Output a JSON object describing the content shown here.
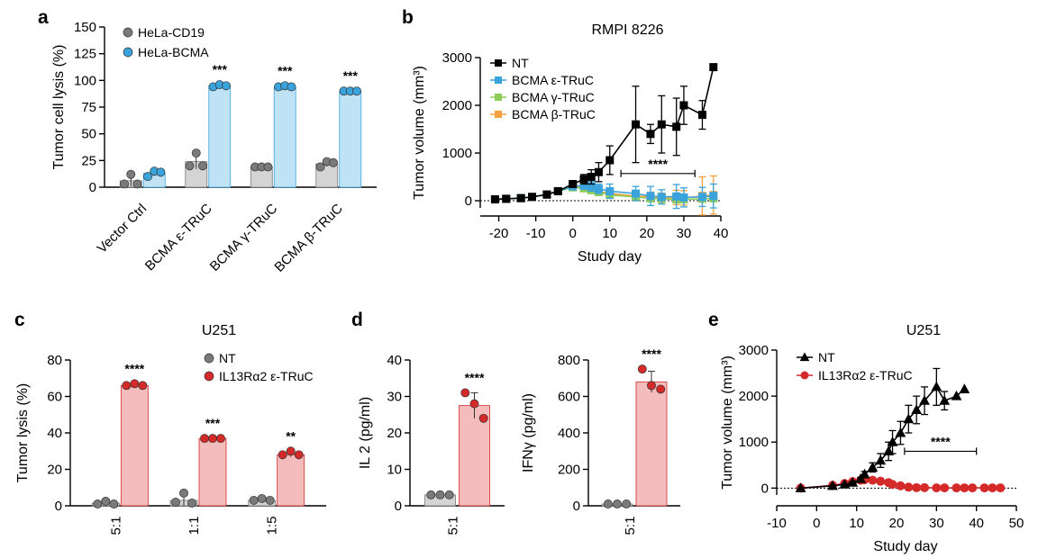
{
  "chart_data": [
    {
      "panel": "a",
      "type": "bar",
      "title": "",
      "ylabel": "Tumor cell lysis (%)",
      "xlabel": "",
      "ylim": [
        0,
        150
      ],
      "yticks": [
        0,
        25,
        50,
        75,
        100,
        125,
        150
      ],
      "categories": [
        "Vector Ctrl",
        "BCMA ε-TRuC",
        "BCMA γ-TRuC",
        "BCMA β-TRuC"
      ],
      "legend_position": "top-left",
      "series": [
        {
          "name": "HeLa-CD19",
          "color": "#d4d4d4",
          "dot_color": "#7a7a7a",
          "values": [
            6,
            24,
            19,
            22
          ],
          "points": [
            [
              3,
              12,
              3
            ],
            [
              20,
              32,
              20
            ],
            [
              19,
              19,
              19
            ],
            [
              19,
              24,
              23
            ]
          ]
        },
        {
          "name": "HeLa-BCMA",
          "color": "#bfe3f5",
          "dot_color": "#3ba3dc",
          "values": [
            13,
            95,
            94,
            90
          ],
          "points": [
            [
              10,
              15,
              14
            ],
            [
              94,
              96,
              95
            ],
            [
              94,
              95,
              94
            ],
            [
              90,
              90,
              90
            ]
          ]
        }
      ],
      "annotations": [
        "***",
        "***",
        "***"
      ]
    },
    {
      "panel": "b",
      "type": "line",
      "title": "RMPI 8226",
      "xlabel": "Study day",
      "ylabel": "Tumor volume (mm³)",
      "xlim": [
        -25,
        40
      ],
      "ylim": [
        -150,
        3000
      ],
      "xticks": [
        -20,
        -10,
        0,
        10,
        20,
        30,
        40
      ],
      "yticks": [
        0,
        1000,
        2000,
        3000
      ],
      "legend_position": "top-left",
      "series": [
        {
          "name": "NT",
          "color": "#000000",
          "marker": "square",
          "x": [
            -21,
            -18,
            -14,
            -11,
            -7,
            -4,
            0,
            3,
            5,
            7,
            10,
            17,
            21,
            24,
            28,
            30,
            35,
            38
          ],
          "y": [
            30,
            40,
            55,
            80,
            130,
            200,
            350,
            450,
            500,
            600,
            850,
            1600,
            1400,
            1600,
            1550,
            2000,
            1800,
            2800
          ],
          "err": [
            0,
            0,
            0,
            0,
            20,
            30,
            60,
            100,
            150,
            200,
            300,
            800,
            200,
            600,
            600,
            400,
            300,
            0
          ]
        },
        {
          "name": "BCMA ε-TRuC",
          "color": "#3ba3dc",
          "marker": "square",
          "x": [
            -21,
            -18,
            -14,
            -11,
            -7,
            -4,
            0,
            3,
            5,
            7,
            10,
            17,
            21,
            24,
            28,
            30,
            35,
            38
          ],
          "y": [
            30,
            40,
            55,
            80,
            130,
            200,
            300,
            320,
            300,
            250,
            200,
            150,
            100,
            80,
            90,
            70,
            80,
            100
          ],
          "err": [
            0,
            0,
            0,
            0,
            20,
            30,
            60,
            80,
            100,
            100,
            150,
            150,
            200,
            150,
            250,
            200,
            200,
            250
          ]
        },
        {
          "name": "BCMA γ-TRuC",
          "color": "#8ccd5a",
          "marker": "square",
          "x": [
            -21,
            -18,
            -14,
            -11,
            -7,
            -4,
            0,
            3,
            5,
            7,
            10,
            17,
            21,
            24,
            28,
            30,
            35,
            38
          ],
          "y": [
            30,
            40,
            55,
            80,
            130,
            200,
            280,
            260,
            220,
            180,
            120,
            80,
            50,
            40,
            30,
            30,
            40,
            50
          ],
          "err": [
            0,
            0,
            0,
            0,
            20,
            30,
            50,
            60,
            60,
            60,
            60,
            60,
            50,
            40,
            40,
            40,
            40,
            50
          ]
        },
        {
          "name": "BCMA β-TRuC",
          "color": "#f5a040",
          "marker": "square",
          "x": [
            -21,
            -18,
            -14,
            -11,
            -7,
            -4,
            0,
            3,
            5,
            7,
            10,
            17,
            21,
            24,
            28,
            30,
            35,
            38
          ],
          "y": [
            30,
            40,
            55,
            80,
            130,
            200,
            300,
            280,
            250,
            200,
            150,
            100,
            80,
            60,
            70,
            60,
            100,
            120
          ],
          "err": [
            0,
            0,
            0,
            0,
            20,
            30,
            60,
            80,
            80,
            80,
            100,
            100,
            100,
            100,
            150,
            150,
            400,
            400
          ]
        }
      ],
      "annotations": [
        "****"
      ]
    },
    {
      "panel": "c",
      "type": "bar",
      "title": "U251",
      "ylabel": "Tumor lysis (%)",
      "xlabel": "",
      "ylim": [
        0,
        80
      ],
      "yticks": [
        0,
        20,
        40,
        60,
        80
      ],
      "categories": [
        "5:1",
        "1:1",
        "1:5"
      ],
      "legend_position": "top-right",
      "series": [
        {
          "name": "NT",
          "color": "#d4d4d4",
          "dot_color": "#7a7a7a",
          "values": [
            1.5,
            3,
            3
          ],
          "points": [
            [
              1,
              2.5,
              1
            ],
            [
              2,
              7,
              1.5
            ],
            [
              3,
              4,
              3
            ]
          ]
        },
        {
          "name": "IL13Rα2 ε-TRuC",
          "color": "#f4bcbc",
          "dot_color": "#d42a2a",
          "values": [
            66,
            37,
            28
          ],
          "points": [
            [
              66,
              67,
              66
            ],
            [
              37,
              37,
              37
            ],
            [
              28,
              30,
              28
            ]
          ]
        }
      ],
      "annotations": [
        "****",
        "***",
        "**"
      ]
    },
    {
      "panel": "d",
      "type": "bar",
      "title": "",
      "ylabel": "IL 2 (pg/ml)",
      "ylim": [
        0,
        40
      ],
      "yticks": [
        0,
        10,
        20,
        30,
        40
      ],
      "categories": [
        "5:1"
      ],
      "series": [
        {
          "name": "NT",
          "color": "#d4d4d4",
          "dot_color": "#7a7a7a",
          "values": [
            3
          ],
          "points": [
            [
              3,
              3,
              3
            ]
          ]
        },
        {
          "name": "IL13Rα2 ε-TRuC",
          "color": "#f4bcbc",
          "dot_color": "#d42a2a",
          "values": [
            27.5
          ],
          "points": [
            [
              31,
              28,
              24
            ]
          ]
        }
      ],
      "annotations": [
        "****"
      ]
    },
    {
      "panel": "d",
      "type": "bar",
      "title": "",
      "ylabel": "IFNγ (pg/ml)",
      "ylim": [
        0,
        800
      ],
      "yticks": [
        0,
        200,
        400,
        600,
        800
      ],
      "categories": [
        "5:1"
      ],
      "series": [
        {
          "name": "NT",
          "color": "#d4d4d4",
          "dot_color": "#7a7a7a",
          "values": [
            10
          ],
          "points": [
            [
              10,
              10,
              10
            ]
          ]
        },
        {
          "name": "IL13Rα2 ε-TRuC",
          "color": "#f4bcbc",
          "dot_color": "#d42a2a",
          "values": [
            680
          ],
          "points": [
            [
              750,
              660,
              640
            ]
          ]
        }
      ],
      "annotations": [
        "****"
      ]
    },
    {
      "panel": "e",
      "type": "line",
      "title": "U251",
      "xlabel": "Study day",
      "ylabel": "Tumor volume (mm³)",
      "xlim": [
        -10,
        50
      ],
      "ylim": [
        -150,
        3000
      ],
      "xticks": [
        -10,
        0,
        10,
        20,
        30,
        40,
        50
      ],
      "yticks": [
        0,
        1000,
        2000,
        3000
      ],
      "legend_position": "top-left",
      "series": [
        {
          "name": "NT",
          "color": "#000000",
          "marker": "triangle",
          "x": [
            -4,
            4,
            7,
            9,
            11,
            12,
            14,
            16,
            18,
            19,
            21,
            23,
            25,
            27,
            30,
            32,
            35,
            37
          ],
          "y": [
            0,
            50,
            80,
            120,
            200,
            300,
            450,
            600,
            800,
            1000,
            1200,
            1500,
            1700,
            1900,
            2200,
            1900,
            2000,
            2150
          ],
          "err": [
            0,
            0,
            10,
            20,
            30,
            60,
            100,
            150,
            200,
            250,
            250,
            300,
            300,
            300,
            400,
            200,
            0,
            0
          ]
        },
        {
          "name": "IL13Rα2 ε-TRuC",
          "color": "#d42a2a",
          "marker": "circle",
          "x": [
            -4,
            4,
            7,
            9,
            11,
            12,
            14,
            16,
            18,
            19,
            21,
            23,
            25,
            27,
            30,
            32,
            35,
            37,
            39,
            42,
            44,
            46
          ],
          "y": [
            0,
            60,
            100,
            140,
            170,
            180,
            170,
            150,
            120,
            80,
            50,
            20,
            10,
            10,
            5,
            5,
            5,
            5,
            5,
            5,
            5,
            5
          ],
          "err": [
            0,
            10,
            20,
            30,
            30,
            30,
            30,
            30,
            30,
            20,
            20,
            10,
            5,
            5,
            5,
            5,
            5,
            5,
            5,
            5,
            5,
            5
          ]
        }
      ],
      "annotations": [
        "****"
      ]
    }
  ]
}
